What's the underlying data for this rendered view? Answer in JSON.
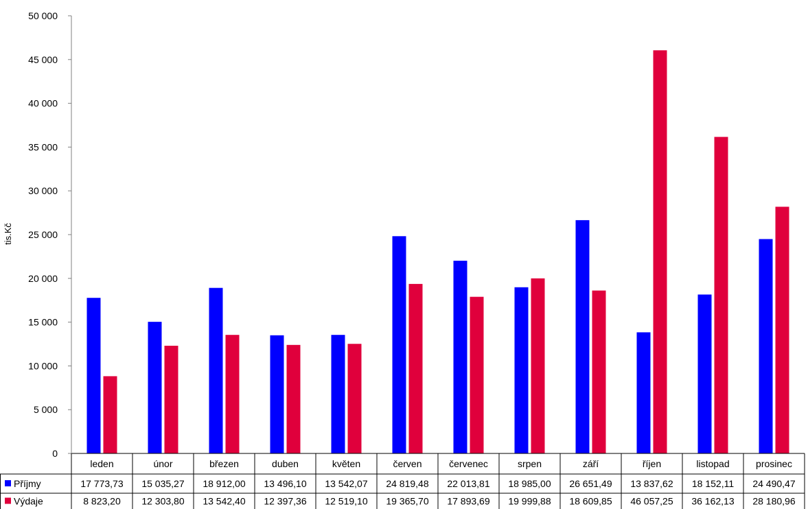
{
  "chart_data": {
    "type": "bar",
    "title": "",
    "xlabel": "",
    "ylabel": "tis.Kč",
    "ylim": [
      0,
      50000
    ],
    "yticks": [
      0,
      5000,
      10000,
      15000,
      20000,
      25000,
      30000,
      35000,
      40000,
      45000,
      50000
    ],
    "ytick_labels": [
      "0",
      "5 000",
      "10 000",
      "15 000",
      "20 000",
      "25 000",
      "30 000",
      "35 000",
      "40 000",
      "45 000",
      "50 000"
    ],
    "grid": false,
    "legend": "data-table",
    "categories": [
      "leden",
      "únor",
      "březen",
      "duben",
      "květen",
      "červen",
      "červenec",
      "srpen",
      "září",
      "říjen",
      "listopad",
      "prosinec"
    ],
    "series": [
      {
        "name": "Příjmy",
        "color": "#0000ff",
        "values": [
          17773.73,
          15035.27,
          18912.0,
          13496.1,
          13542.07,
          24819.48,
          22013.81,
          18985.0,
          26651.49,
          13837.62,
          18152.11,
          24490.47
        ],
        "labels": [
          "17 773,73",
          "15 035,27",
          "18 912,00",
          "13 496,10",
          "13 542,07",
          "24 819,48",
          "22 013,81",
          "18 985,00",
          "26 651,49",
          "13 837,62",
          "18 152,11",
          "24 490,47"
        ]
      },
      {
        "name": "Výdaje",
        "color": "#e0003c",
        "values": [
          8823.2,
          12303.8,
          13542.4,
          12397.36,
          12519.1,
          19365.7,
          17893.69,
          19999.88,
          18609.85,
          46057.25,
          36162.13,
          28180.96
        ],
        "labels": [
          "8 823,20",
          "12 303,80",
          "13 542,40",
          "12 397,36",
          "12 519,10",
          "19 365,70",
          "17 893,69",
          "19 999,88",
          "18 609,85",
          "46 057,25",
          "36 162,13",
          "28 180,96"
        ]
      }
    ]
  }
}
